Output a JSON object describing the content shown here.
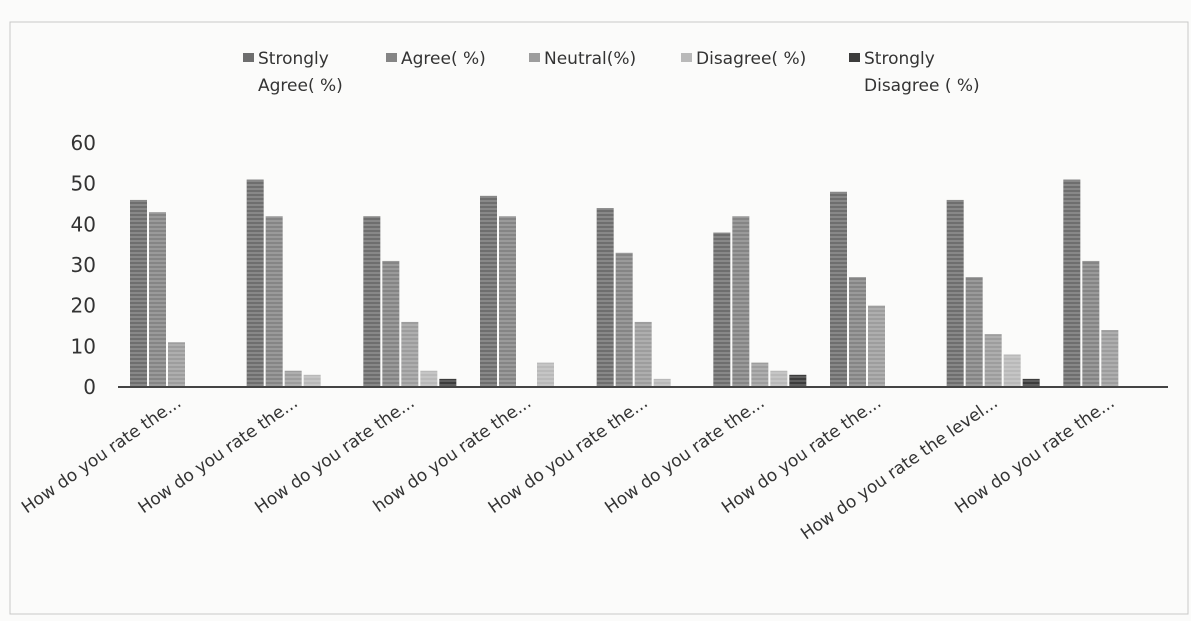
{
  "chart_data": {
    "type": "bar",
    "title": "",
    "xlabel": "",
    "ylabel": "",
    "ylim": [
      0,
      60
    ],
    "yticks": [
      0,
      10,
      20,
      30,
      40,
      50,
      60
    ],
    "grid": false,
    "legend_position": "top",
    "categories": [
      "How do you rate the...",
      "How do you rate the...",
      "How do you rate the...",
      "how do you rate the...",
      "How do you rate the...",
      "How do you rate the...",
      "How do you rate the...",
      "How do you rate the level...",
      "How do you rate the..."
    ],
    "series": [
      {
        "name": "Strongly Agree( %)",
        "legend_lines": [
          "Strongly",
          "Agree( %)"
        ],
        "color": "#6e6e6e",
        "values": [
          46,
          51,
          42,
          47,
          44,
          38,
          48,
          46,
          51
        ]
      },
      {
        "name": "Agree( %)",
        "legend_lines": [
          "Agree( %)"
        ],
        "color": "#858585",
        "values": [
          43,
          42,
          31,
          42,
          33,
          42,
          27,
          27,
          31
        ]
      },
      {
        "name": "Neutral(%)",
        "legend_lines": [
          "Neutral(%)"
        ],
        "color": "#9d9d9d",
        "values": [
          11,
          4,
          16,
          0,
          16,
          6,
          20,
          13,
          14
        ]
      },
      {
        "name": "Disagree( %)",
        "legend_lines": [
          "Disagree( %)"
        ],
        "color": "#b9b9b9",
        "values": [
          0,
          3,
          4,
          6,
          2,
          4,
          0,
          8,
          0
        ]
      },
      {
        "name": "Strongly Disagree ( %)",
        "legend_lines": [
          "Strongly",
          "Disagree ( %)"
        ],
        "color": "#3c3c3c",
        "values": [
          0,
          0,
          2,
          0,
          0,
          3,
          0,
          2,
          0
        ]
      }
    ]
  }
}
